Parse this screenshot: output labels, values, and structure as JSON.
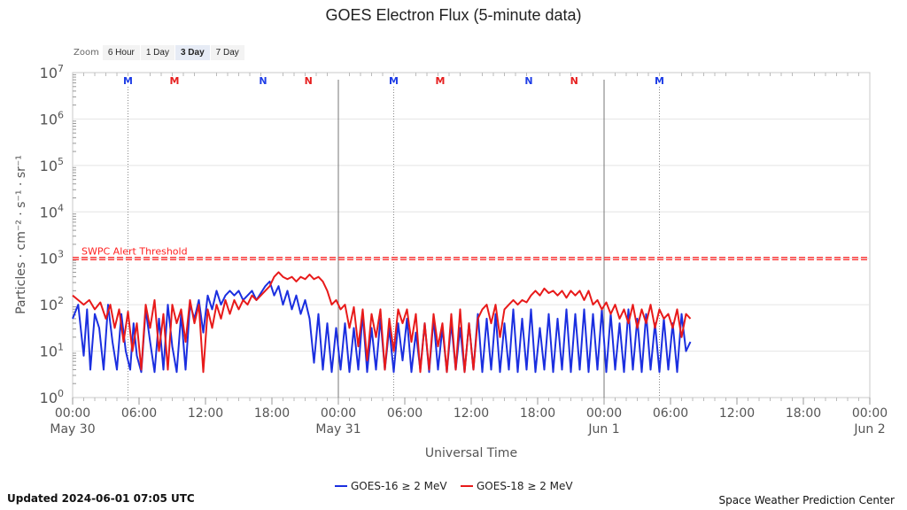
{
  "zoom": {
    "label": "Zoom",
    "buttons": [
      "6 Hour",
      "1 Day",
      "3 Day",
      "7 Day"
    ],
    "active_index": 2
  },
  "footer": {
    "updated": "Updated 2024-06-01 07:05 UTC",
    "credit": "Space Weather Prediction Center"
  },
  "chart_data": {
    "type": "line",
    "title": "GOES Electron Flux (5-minute data)",
    "xlabel": "Universal Time",
    "ylabel": "Particles · cm⁻² · s⁻¹ · sr⁻¹",
    "y_scale": "log",
    "ylim_exponents": [
      0,
      7
    ],
    "y_tick_labels": [
      {
        "base": "10",
        "exp": "0"
      },
      {
        "base": "10",
        "exp": "1"
      },
      {
        "base": "10",
        "exp": "2"
      },
      {
        "base": "10",
        "exp": "3"
      },
      {
        "base": "10",
        "exp": "4"
      },
      {
        "base": "10",
        "exp": "5"
      },
      {
        "base": "10",
        "exp": "6"
      },
      {
        "base": "10",
        "exp": "7"
      }
    ],
    "x_range_hours": [
      0,
      72
    ],
    "x_ticks": [
      {
        "hour": 0,
        "time": "00:00",
        "date": "May 30"
      },
      {
        "hour": 6,
        "time": "06:00",
        "date": ""
      },
      {
        "hour": 12,
        "time": "12:00",
        "date": ""
      },
      {
        "hour": 18,
        "time": "18:00",
        "date": ""
      },
      {
        "hour": 24,
        "time": "00:00",
        "date": "May 31"
      },
      {
        "hour": 30,
        "time": "06:00",
        "date": ""
      },
      {
        "hour": 36,
        "time": "12:00",
        "date": ""
      },
      {
        "hour": 42,
        "time": "18:00",
        "date": ""
      },
      {
        "hour": 48,
        "time": "00:00",
        "date": "Jun 1"
      },
      {
        "hour": 54,
        "time": "06:00",
        "date": ""
      },
      {
        "hour": 60,
        "time": "12:00",
        "date": ""
      },
      {
        "hour": 66,
        "time": "18:00",
        "date": ""
      },
      {
        "hour": 72,
        "time": "00:00",
        "date": "Jun 2"
      }
    ],
    "day_lines_hours": [
      24,
      48
    ],
    "threshold": {
      "label": "SWPC Alert Threshold",
      "value": 1000,
      "color": "#ff2222"
    },
    "markers": [
      {
        "hour": 5.0,
        "label": "M",
        "color": "#1e3de6",
        "dotted": true
      },
      {
        "hour": 9.2,
        "label": "M",
        "color": "#e61e1e",
        "dotted": false
      },
      {
        "hour": 17.2,
        "label": "N",
        "color": "#1e3de6",
        "dotted": false
      },
      {
        "hour": 21.3,
        "label": "N",
        "color": "#e61e1e",
        "dotted": false
      },
      {
        "hour": 29.0,
        "label": "M",
        "color": "#1e3de6",
        "dotted": true
      },
      {
        "hour": 33.2,
        "label": "M",
        "color": "#e61e1e",
        "dotted": false
      },
      {
        "hour": 41.2,
        "label": "N",
        "color": "#1e3de6",
        "dotted": false
      },
      {
        "hour": 45.3,
        "label": "N",
        "color": "#e61e1e",
        "dotted": false
      },
      {
        "hour": 53.0,
        "label": "M",
        "color": "#1e3de6",
        "dotted": true
      }
    ],
    "series": [
      {
        "name": "GOES-16 ≥ 2 MeV",
        "color": "#1b2fe0",
        "points": [
          [
            0,
            1.7
          ],
          [
            0.5,
            2.0
          ],
          [
            1,
            0.9
          ],
          [
            1.3,
            1.9
          ],
          [
            1.6,
            0.6
          ],
          [
            2,
            1.8
          ],
          [
            2.4,
            1.5
          ],
          [
            2.8,
            0.6
          ],
          [
            3.2,
            2.0
          ],
          [
            3.6,
            1.2
          ],
          [
            4,
            0.6
          ],
          [
            4.4,
            1.8
          ],
          [
            4.8,
            1.0
          ],
          [
            5.2,
            0.6
          ],
          [
            5.5,
            1.6
          ],
          [
            5.8,
            0.9
          ],
          [
            6.2,
            0.55
          ],
          [
            6.6,
            1.9
          ],
          [
            7,
            1.2
          ],
          [
            7.4,
            0.55
          ],
          [
            7.8,
            1.7
          ],
          [
            8.2,
            0.6
          ],
          [
            8.6,
            2.0
          ],
          [
            9,
            1.1
          ],
          [
            9.4,
            0.55
          ],
          [
            9.8,
            1.8
          ],
          [
            10.2,
            0.6
          ],
          [
            10.6,
            2.0
          ],
          [
            11,
            1.7
          ],
          [
            11.4,
            2.1
          ],
          [
            11.8,
            1.4
          ],
          [
            12.2,
            2.2
          ],
          [
            12.6,
            1.9
          ],
          [
            13,
            2.3
          ],
          [
            13.4,
            2.0
          ],
          [
            13.8,
            2.2
          ],
          [
            14.2,
            2.3
          ],
          [
            14.6,
            2.2
          ],
          [
            15,
            2.3
          ],
          [
            15.4,
            2.1
          ],
          [
            15.8,
            2.2
          ],
          [
            16.2,
            2.3
          ],
          [
            16.6,
            2.1
          ],
          [
            17,
            2.25
          ],
          [
            17.4,
            2.4
          ],
          [
            17.8,
            2.5
          ],
          [
            18.2,
            2.2
          ],
          [
            18.6,
            2.4
          ],
          [
            19,
            2.0
          ],
          [
            19.4,
            2.3
          ],
          [
            19.8,
            1.9
          ],
          [
            20.2,
            2.2
          ],
          [
            20.6,
            1.8
          ],
          [
            21,
            2.1
          ],
          [
            21.4,
            1.7
          ],
          [
            21.8,
            0.75
          ],
          [
            22.2,
            1.8
          ],
          [
            22.6,
            0.6
          ],
          [
            23,
            1.6
          ],
          [
            23.4,
            0.55
          ],
          [
            23.8,
            1.5
          ],
          [
            24.2,
            0.6
          ],
          [
            24.6,
            1.6
          ],
          [
            25,
            0.55
          ],
          [
            25.4,
            1.5
          ],
          [
            25.8,
            0.6
          ],
          [
            26.2,
            1.8
          ],
          [
            26.6,
            0.55
          ],
          [
            27,
            1.5
          ],
          [
            27.4,
            0.6
          ],
          [
            27.8,
            1.7
          ],
          [
            28.2,
            0.6
          ],
          [
            28.6,
            1.5
          ],
          [
            29,
            0.55
          ],
          [
            29.4,
            1.6
          ],
          [
            29.8,
            0.8
          ],
          [
            30.2,
            1.7
          ],
          [
            30.6,
            0.55
          ],
          [
            31,
            1.4
          ],
          [
            31.4,
            0.6
          ],
          [
            31.8,
            1.6
          ],
          [
            32.2,
            0.55
          ],
          [
            32.6,
            1.7
          ],
          [
            33,
            0.6
          ],
          [
            33.4,
            1.5
          ],
          [
            33.8,
            0.55
          ],
          [
            34.2,
            1.6
          ],
          [
            34.6,
            0.6
          ],
          [
            35,
            1.5
          ],
          [
            35.4,
            0.55
          ],
          [
            35.8,
            1.6
          ],
          [
            36.2,
            0.6
          ],
          [
            36.6,
            1.8
          ],
          [
            37,
            0.55
          ],
          [
            37.4,
            1.7
          ],
          [
            37.8,
            0.6
          ],
          [
            38.2,
            1.8
          ],
          [
            38.6,
            0.55
          ],
          [
            39,
            1.6
          ],
          [
            39.4,
            0.6
          ],
          [
            39.8,
            1.9
          ],
          [
            40.2,
            0.55
          ],
          [
            40.6,
            1.7
          ],
          [
            41,
            0.6
          ],
          [
            41.4,
            1.9
          ],
          [
            41.8,
            0.55
          ],
          [
            42.2,
            1.5
          ],
          [
            42.6,
            0.6
          ],
          [
            43,
            1.8
          ],
          [
            43.4,
            0.55
          ],
          [
            43.8,
            1.7
          ],
          [
            44.2,
            0.6
          ],
          [
            44.6,
            1.9
          ],
          [
            45,
            0.55
          ],
          [
            45.4,
            1.8
          ],
          [
            45.8,
            0.6
          ],
          [
            46.2,
            1.9
          ],
          [
            46.6,
            0.55
          ],
          [
            47,
            1.8
          ],
          [
            47.4,
            0.6
          ],
          [
            47.8,
            1.9
          ],
          [
            48.2,
            0.55
          ],
          [
            48.6,
            1.8
          ],
          [
            49,
            0.6
          ],
          [
            49.4,
            1.6
          ],
          [
            49.8,
            0.55
          ],
          [
            50.2,
            1.9
          ],
          [
            50.6,
            0.6
          ],
          [
            51,
            1.7
          ],
          [
            51.4,
            0.55
          ],
          [
            51.8,
            1.8
          ],
          [
            52.2,
            0.6
          ],
          [
            52.6,
            1.6
          ],
          [
            53,
            0.55
          ],
          [
            53.4,
            1.7
          ],
          [
            53.8,
            0.6
          ],
          [
            54.2,
            1.6
          ],
          [
            54.6,
            0.55
          ],
          [
            55,
            1.8
          ],
          [
            55.4,
            1.0
          ],
          [
            55.8,
            1.2
          ]
        ]
      },
      {
        "name": "GOES-18 ≥ 2 MeV",
        "color": "#e81a1a",
        "points": [
          [
            0,
            2.2
          ],
          [
            0.5,
            2.1
          ],
          [
            1,
            2.0
          ],
          [
            1.5,
            2.1
          ],
          [
            2,
            1.9
          ],
          [
            2.5,
            2.05
          ],
          [
            3,
            1.7
          ],
          [
            3.4,
            2.0
          ],
          [
            3.8,
            1.5
          ],
          [
            4.2,
            1.9
          ],
          [
            4.6,
            1.2
          ],
          [
            5,
            1.85
          ],
          [
            5.4,
            1.0
          ],
          [
            5.8,
            1.6
          ],
          [
            6.2,
            0.6
          ],
          [
            6.6,
            2.0
          ],
          [
            7,
            1.5
          ],
          [
            7.4,
            2.1
          ],
          [
            7.8,
            1.0
          ],
          [
            8.2,
            1.8
          ],
          [
            8.6,
            0.6
          ],
          [
            9,
            2.0
          ],
          [
            9.4,
            1.6
          ],
          [
            9.8,
            1.9
          ],
          [
            10.2,
            1.2
          ],
          [
            10.6,
            2.1
          ],
          [
            11,
            1.6
          ],
          [
            11.4,
            2.0
          ],
          [
            11.8,
            0.55
          ],
          [
            12.2,
            1.9
          ],
          [
            12.6,
            1.5
          ],
          [
            13,
            2.0
          ],
          [
            13.4,
            1.7
          ],
          [
            13.8,
            2.1
          ],
          [
            14.2,
            1.8
          ],
          [
            14.6,
            2.1
          ],
          [
            15,
            1.9
          ],
          [
            15.4,
            2.1
          ],
          [
            15.8,
            2.0
          ],
          [
            16.2,
            2.2
          ],
          [
            16.6,
            2.1
          ],
          [
            17,
            2.2
          ],
          [
            17.4,
            2.3
          ],
          [
            17.8,
            2.4
          ],
          [
            18.2,
            2.6
          ],
          [
            18.6,
            2.7
          ],
          [
            19,
            2.6
          ],
          [
            19.4,
            2.55
          ],
          [
            19.8,
            2.6
          ],
          [
            20.2,
            2.5
          ],
          [
            20.6,
            2.6
          ],
          [
            21,
            2.55
          ],
          [
            21.4,
            2.65
          ],
          [
            21.8,
            2.55
          ],
          [
            22.2,
            2.6
          ],
          [
            22.6,
            2.5
          ],
          [
            23,
            2.3
          ],
          [
            23.4,
            2.0
          ],
          [
            23.8,
            2.1
          ],
          [
            24.2,
            1.9
          ],
          [
            24.6,
            2.0
          ],
          [
            25,
            1.5
          ],
          [
            25.4,
            1.95
          ],
          [
            25.8,
            1.1
          ],
          [
            26.2,
            1.9
          ],
          [
            26.6,
            0.8
          ],
          [
            27,
            1.8
          ],
          [
            27.4,
            1.3
          ],
          [
            27.8,
            1.9
          ],
          [
            28.2,
            0.6
          ],
          [
            28.6,
            1.7
          ],
          [
            29,
            1.0
          ],
          [
            29.4,
            1.9
          ],
          [
            29.8,
            1.6
          ],
          [
            30.2,
            1.9
          ],
          [
            30.6,
            1.2
          ],
          [
            31,
            1.8
          ],
          [
            31.4,
            0.55
          ],
          [
            31.8,
            1.6
          ],
          [
            32.2,
            0.6
          ],
          [
            32.6,
            1.8
          ],
          [
            33,
            1.1
          ],
          [
            33.4,
            1.6
          ],
          [
            33.8,
            0.55
          ],
          [
            34.2,
            1.8
          ],
          [
            34.6,
            0.6
          ],
          [
            35,
            1.9
          ],
          [
            35.4,
            0.55
          ],
          [
            35.8,
            1.6
          ],
          [
            36.2,
            0.6
          ],
          [
            36.6,
            1.7
          ],
          [
            37,
            1.9
          ],
          [
            37.4,
            2.0
          ],
          [
            37.8,
            1.6
          ],
          [
            38.2,
            2.0
          ],
          [
            38.6,
            1.3
          ],
          [
            39,
            1.9
          ],
          [
            39.4,
            2.0
          ],
          [
            39.8,
            2.1
          ],
          [
            40.2,
            2.0
          ],
          [
            40.6,
            2.1
          ],
          [
            41,
            2.05
          ],
          [
            41.4,
            2.2
          ],
          [
            41.8,
            2.3
          ],
          [
            42.2,
            2.2
          ],
          [
            42.6,
            2.35
          ],
          [
            43,
            2.25
          ],
          [
            43.4,
            2.3
          ],
          [
            43.8,
            2.2
          ],
          [
            44.2,
            2.3
          ],
          [
            44.6,
            2.15
          ],
          [
            45,
            2.3
          ],
          [
            45.4,
            2.2
          ],
          [
            45.8,
            2.3
          ],
          [
            46.2,
            2.1
          ],
          [
            46.6,
            2.3
          ],
          [
            47,
            2.0
          ],
          [
            47.4,
            2.1
          ],
          [
            47.8,
            1.9
          ],
          [
            48.2,
            2.05
          ],
          [
            48.6,
            1.8
          ],
          [
            49,
            2.0
          ],
          [
            49.4,
            1.7
          ],
          [
            49.8,
            1.9
          ],
          [
            50.2,
            1.6
          ],
          [
            50.6,
            2.0
          ],
          [
            51,
            1.5
          ],
          [
            51.4,
            1.9
          ],
          [
            51.8,
            1.6
          ],
          [
            52.2,
            2.0
          ],
          [
            52.6,
            1.5
          ],
          [
            53,
            1.9
          ],
          [
            53.4,
            1.7
          ],
          [
            53.8,
            1.8
          ],
          [
            54.2,
            1.5
          ],
          [
            54.6,
            1.9
          ],
          [
            55,
            1.3
          ],
          [
            55.4,
            1.8
          ],
          [
            55.8,
            1.7
          ]
        ]
      }
    ]
  }
}
